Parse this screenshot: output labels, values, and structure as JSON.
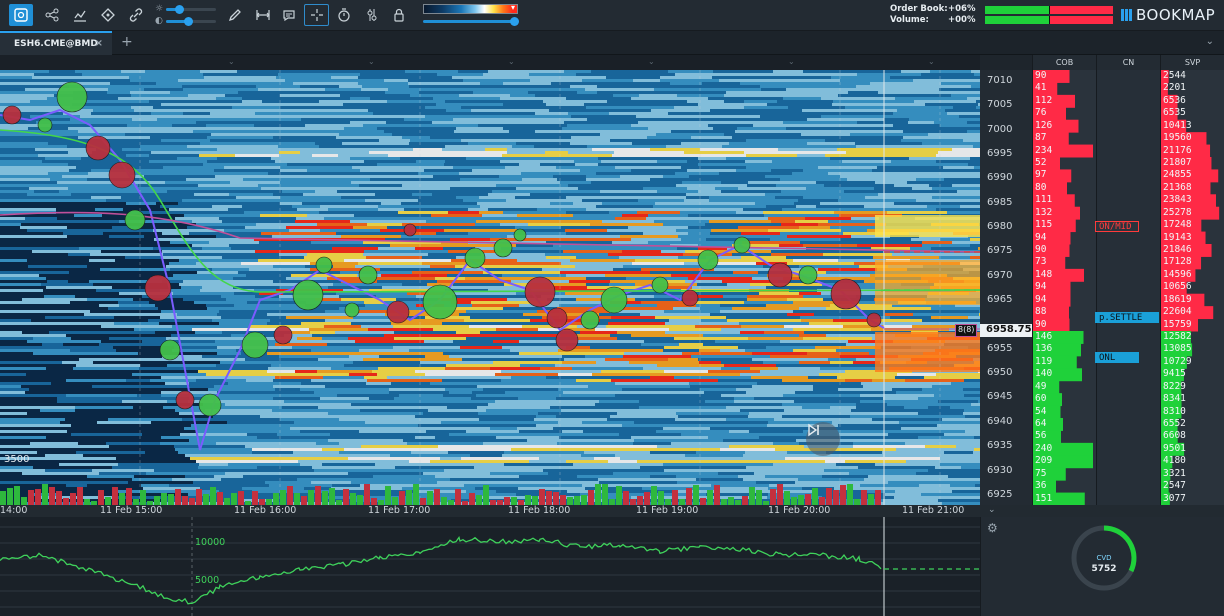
{
  "toolbar": {
    "tools": [
      "add-chart-icon",
      "share-icon",
      "indicators-icon",
      "drawing-icon",
      "link-icon",
      "brightness-icon",
      "contrast-icon",
      "pencil-icon",
      "measure-icon",
      "chat-icon",
      "crosshair-icon",
      "timer-icon",
      "settings-icon",
      "lock-icon"
    ]
  },
  "stats": {
    "order_book_label": "Order Book:",
    "order_book_value": "+06%",
    "volume_label": "Volume:",
    "volume_value": "+00%"
  },
  "brand": {
    "name": "BOOKMAP"
  },
  "tabs": [
    {
      "label": "ESH6.CME@BMD",
      "close": "×"
    }
  ],
  "tab_add": "+",
  "columns": {
    "cob": "COB",
    "cn": "CN",
    "svp": "SVP"
  },
  "price_axis": {
    "labels": [
      "7010",
      "7005",
      "7000",
      "6995",
      "6990",
      "6985",
      "6980",
      "6975",
      "6970",
      "6965",
      "6955",
      "6950",
      "6945",
      "6940",
      "6935",
      "6930",
      "6925"
    ],
    "current": "6958.75",
    "left_marker": "3500",
    "bid_size_tag": "8(8)"
  },
  "cob_values": [
    "90",
    "41",
    "112",
    "76",
    "126",
    "87",
    "234",
    "52",
    "97",
    "80",
    "111",
    "132",
    "115",
    "94",
    "90",
    "73",
    "148",
    "94",
    "94",
    "88",
    "90",
    "146",
    "136",
    "119",
    "140",
    "49",
    "60",
    "54",
    "64",
    "56",
    "240",
    "209",
    "75",
    "36",
    "151"
  ],
  "svp_values": [
    "2544",
    "2201",
    "6536",
    "6535",
    "10413",
    "19560",
    "21176",
    "21807",
    "24855",
    "21368",
    "23843",
    "25278",
    "17248",
    "19143",
    "21846",
    "17128",
    "14596",
    "10656",
    "18619",
    "22604",
    "15759",
    "12582",
    "13085",
    "10729",
    "9415",
    "8229",
    "8341",
    "8310",
    "6552",
    "6608",
    "9501",
    "4180",
    "3321",
    "2547",
    "3077"
  ],
  "cn_tags": [
    {
      "label": "ON/MID",
      "color": "#ff3b3b"
    },
    {
      "label": "p.SETTLE",
      "color": "#1aa0d8"
    },
    {
      "label": "ONL",
      "color": "#1aa0d8"
    }
  ],
  "time_axis": {
    "labels": [
      "14:00",
      "11 Feb 15:00",
      "11 Feb 16:00",
      "11 Feb 17:00",
      "11 Feb 18:00",
      "11 Feb 19:00",
      "11 Feb 20:00",
      "11 Feb 21:00"
    ]
  },
  "indicator": {
    "levels": [
      "10000",
      "5000"
    ]
  },
  "cvd": {
    "label": "CVD",
    "value": "5752"
  },
  "colors": {
    "accent": "#1f8fd6",
    "buy": "#1fd13a",
    "sell": "#ff2a46",
    "vwap_green": "#43d64a",
    "vwap_magenta": "#c0509a"
  }
}
